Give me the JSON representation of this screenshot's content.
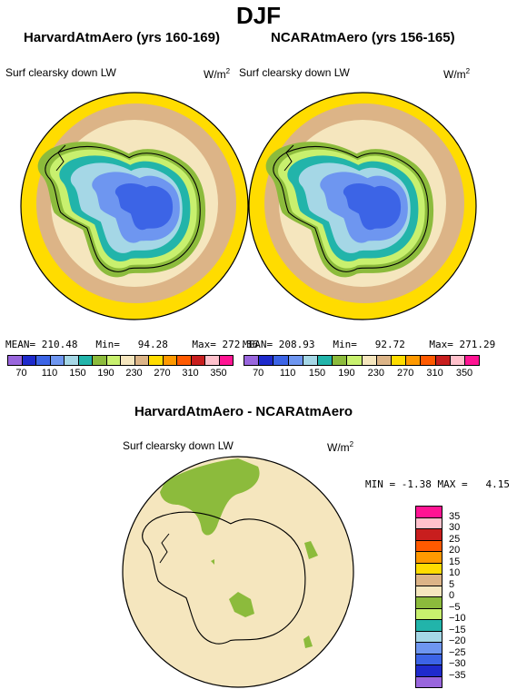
{
  "figure_title": "DJF",
  "left_panel": {
    "title": "HarvardAtmAero (yrs 160-169)",
    "variable": "Surf clearsky down LW",
    "units_base": "W/m",
    "units_exp": "2",
    "stats": {
      "mean_label": "MEAN=",
      "mean": "210.48",
      "min_label": "Min=",
      "min": "94.28",
      "max_label": "Max=",
      "max": "272.36"
    }
  },
  "right_panel": {
    "title": "NCARAtmAero (yrs 156-165)",
    "variable": "Surf clearsky down LW",
    "units_base": "W/m",
    "units_exp": "2",
    "stats": {
      "mean_label": "MEAN=",
      "mean": "208.93",
      "min_label": "Min=",
      "min": "92.72",
      "max_label": "Max=",
      "max": "271.29"
    }
  },
  "abs_colorbar": {
    "colors": [
      "#9966dd",
      "#1e2acc",
      "#3c64e6",
      "#6e96f0",
      "#a5d7e6",
      "#22b4aa",
      "#8cbb3c",
      "#c8f06e",
      "#f5e6be",
      "#dcb487",
      "#ffdc00",
      "#ff9900",
      "#ff5a00",
      "#c81e1e",
      "#ffc0cb",
      "#ff1493"
    ],
    "ticks": [
      "70",
      "110",
      "150",
      "190",
      "230",
      "270",
      "310",
      "350"
    ]
  },
  "diff_panel": {
    "title": "HarvardAtmAero - NCARAtmAero",
    "variable": "Surf clearsky down LW",
    "units_base": "W/m",
    "units_exp": "2",
    "min_label": "MIN =",
    "min": "-1.38",
    "max_label": "MAX =",
    "max": "4.15"
  },
  "diff_colorbar": {
    "colors": [
      "#ff1493",
      "#ffc0cb",
      "#c81e1e",
      "#ff5a00",
      "#ff9900",
      "#ffdc00",
      "#dcb487",
      "#f5e6be",
      "#8cbb3c",
      "#c8f06e",
      "#22b4aa",
      "#a5d7e6",
      "#6e96f0",
      "#3c64e6",
      "#1e2acc",
      "#9966dd"
    ],
    "labels": [
      "35",
      "30",
      "25",
      "20",
      "15",
      "10",
      "5",
      "0",
      "−5",
      "−10",
      "−15",
      "−20",
      "−25",
      "−30",
      "−35"
    ]
  },
  "chart_data": [
    {
      "type": "map",
      "title": "HarvardAtmAero (yrs 160-169)",
      "projection": "south polar stereographic",
      "variable": "Surf clearsky down LW",
      "units": "W/m2",
      "mean": 210.48,
      "min": 94.28,
      "max": 272.36,
      "contour_levels": [
        70,
        90,
        110,
        130,
        150,
        170,
        190,
        210,
        230,
        250,
        270,
        290,
        310,
        330,
        350
      ]
    },
    {
      "type": "map",
      "title": "NCARAtmAero (yrs 156-165)",
      "projection": "south polar stereographic",
      "variable": "Surf clearsky down LW",
      "units": "W/m2",
      "mean": 208.93,
      "min": 92.72,
      "max": 271.29,
      "contour_levels": [
        70,
        90,
        110,
        130,
        150,
        170,
        190,
        210,
        230,
        250,
        270,
        290,
        310,
        330,
        350
      ]
    },
    {
      "type": "map",
      "title": "HarvardAtmAero - NCARAtmAero",
      "projection": "south polar stereographic",
      "variable": "Surf clearsky down LW",
      "units": "W/m2",
      "min": -1.38,
      "max": 4.15,
      "contour_levels": [
        -35,
        -30,
        -25,
        -20,
        -15,
        -10,
        -5,
        0,
        5,
        10,
        15,
        20,
        25,
        30,
        35
      ]
    }
  ]
}
